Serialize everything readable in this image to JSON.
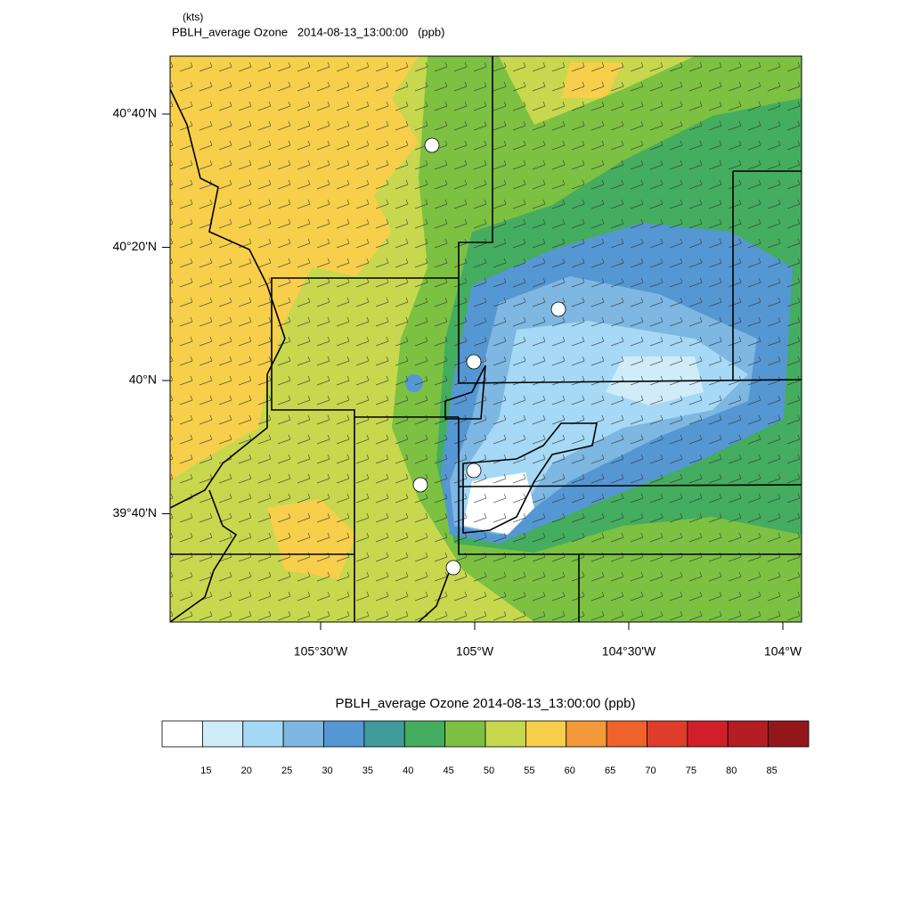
{
  "header": {
    "units": "(kts)",
    "title": "PBLH_average Ozone   2014-08-13_13:00:00   (ppb)"
  },
  "map": {
    "lat_ticks": [
      {
        "value": 40.6667,
        "label": "40°40'N"
      },
      {
        "value": 40.3333,
        "label": "40°20'N"
      },
      {
        "value": 40,
        "label": "40°N"
      },
      {
        "value": 39.6667,
        "label": "39°40'N"
      }
    ],
    "lon_ticks": [
      {
        "value": -105.5,
        "label": "105°30'W"
      },
      {
        "value": -105,
        "label": "105°W"
      },
      {
        "value": -104.5,
        "label": "104°30'W"
      },
      {
        "value": -104,
        "label": "104°W"
      }
    ]
  },
  "colorbar": {
    "title": "PBLH_average Ozone   2014-08-13_13:00:00  (ppb)",
    "colors": [
      "#ffffff",
      "#d0ecf8",
      "#a5d9f5",
      "#7db7e2",
      "#5597d3",
      "#409b9b",
      "#44ad5f",
      "#7cc142",
      "#c7d84e",
      "#f7cf4a",
      "#f39939",
      "#ef6229",
      "#e03c2b",
      "#d01f2a",
      "#b31d23",
      "#93171a"
    ],
    "labels": [
      15,
      20,
      25,
      30,
      35,
      40,
      45,
      50,
      55,
      60,
      65,
      70,
      75,
      80,
      85
    ]
  }
}
